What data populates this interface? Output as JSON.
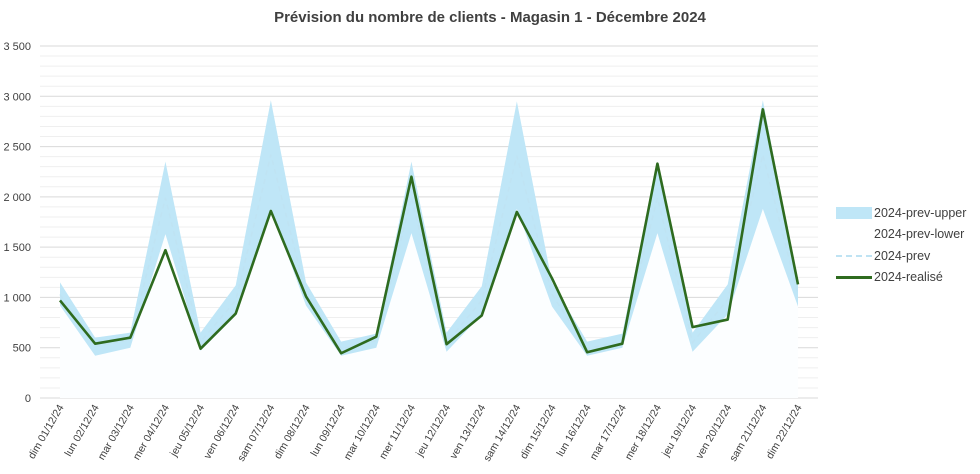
{
  "chart_data": {
    "type": "area",
    "title": "Prévision du nombre de clients - Magasin 1 - Décembre 2024",
    "xlabel": "",
    "ylabel": "",
    "ylim": [
      0,
      3500
    ],
    "yticks": [
      0,
      500,
      1000,
      1500,
      2000,
      2500,
      3000,
      3500
    ],
    "ytick_labels": [
      "0",
      "500",
      "1 000",
      "1 500",
      "2 000",
      "2 500",
      "3 000",
      "3 500"
    ],
    "grid": true,
    "legend_position": "right",
    "categories": [
      "dim 01/12/24",
      "lun 02/12/24",
      "mar 03/12/24",
      "mer 04/12/24",
      "jeu 05/12/24",
      "ven 06/12/24",
      "sam 07/12/24",
      "dim 08/12/24",
      "lun 09/12/24",
      "mar 10/12/24",
      "mer 11/12/24",
      "jeu 12/12/24",
      "ven 13/12/24",
      "sam 14/12/24",
      "dim 15/12/24",
      "lun 16/12/24",
      "mar 17/12/24",
      "mer 18/12/24",
      "jeu 19/12/24",
      "ven 20/12/24",
      "sam 21/12/24",
      "dim 22/12/24"
    ],
    "series": [
      {
        "name": "2024-prev-upper",
        "color": "#bfe6f7",
        "values": [
          1150,
          600,
          650,
          2350,
          650,
          1120,
          2960,
          1150,
          560,
          640,
          2350,
          650,
          1110,
          2950,
          1150,
          560,
          640,
          2350,
          650,
          1130,
          2960,
          1150
        ]
      },
      {
        "name": "2024-prev-lower",
        "color": "#ffffff",
        "values": [
          920,
          420,
          500,
          1630,
          470,
          820,
          1880,
          920,
          420,
          500,
          1640,
          460,
          830,
          1880,
          910,
          420,
          500,
          1640,
          460,
          830,
          1880,
          910
        ]
      },
      {
        "name": "2024-prev",
        "color": "#bfe3f3",
        "values": [
          1030,
          510,
          580,
          1990,
          560,
          970,
          2420,
          1030,
          490,
          570,
          1990,
          550,
          970,
          2410,
          1030,
          490,
          570,
          1990,
          550,
          980,
          2420,
          1030
        ]
      },
      {
        "name": "2024-realisé",
        "color": "#2e6b1f",
        "values": [
          970,
          540,
          600,
          1470,
          490,
          840,
          1860,
          1010,
          445,
          610,
          2200,
          535,
          820,
          1850,
          1190,
          455,
          540,
          2330,
          705,
          780,
          2870,
          1130
        ]
      }
    ]
  }
}
